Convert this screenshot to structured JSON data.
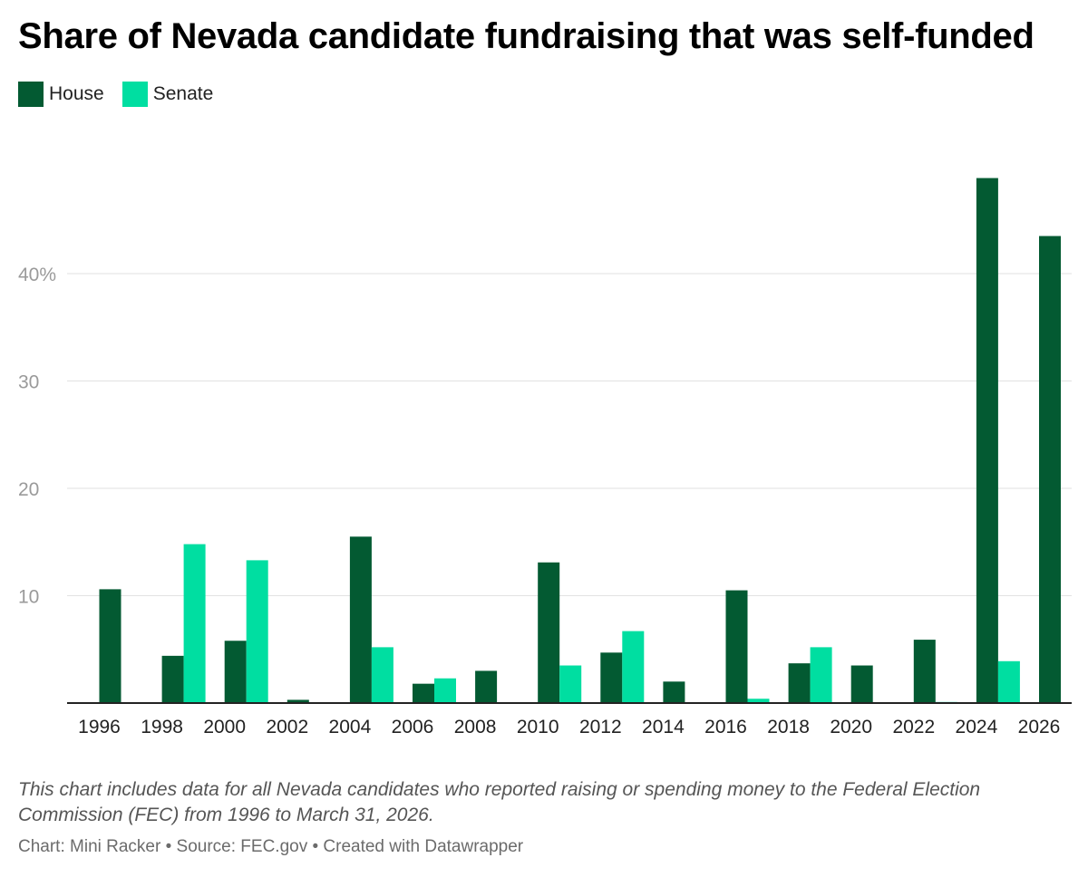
{
  "chart_data": {
    "type": "bar",
    "title": "Share of Nevada candidate fundraising that was self-funded",
    "categories": [
      "1996",
      "1998",
      "2000",
      "2002",
      "2004",
      "2006",
      "2008",
      "2010",
      "2012",
      "2014",
      "2016",
      "2018",
      "2020",
      "2022",
      "2024",
      "2026"
    ],
    "series": [
      {
        "name": "House",
        "color": "#035a32",
        "values": [
          10.6,
          4.4,
          5.8,
          0.3,
          15.5,
          1.8,
          3.0,
          13.1,
          4.7,
          2.0,
          10.5,
          3.7,
          3.5,
          5.9,
          48.9,
          43.5
        ]
      },
      {
        "name": "Senate",
        "color": "#00dea1",
        "values": [
          0,
          14.8,
          13.3,
          0,
          5.2,
          2.3,
          0,
          3.5,
          6.7,
          0,
          0.4,
          5.2,
          0,
          0.1,
          3.9,
          0
        ]
      }
    ],
    "y_ticks": [
      {
        "value": 10,
        "label": "10"
      },
      {
        "value": 20,
        "label": "20"
      },
      {
        "value": 30,
        "label": "30"
      },
      {
        "value": 40,
        "label": "40%"
      }
    ],
    "ylim": [
      0,
      54
    ],
    "grid": true,
    "legend_position": "top-left"
  },
  "notes": "This chart includes data for all Nevada candidates who reported raising or spending money to the Federal Election Commission (FEC) from 1996 to March 31, 2026.",
  "credit": "Chart: Mini Racker • Source: FEC.gov • Created with Datawrapper"
}
